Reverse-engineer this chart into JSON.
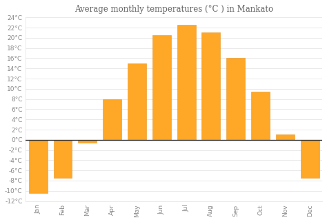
{
  "title": "Average monthly temperatures (°C ) in Mankato",
  "months": [
    "Jan",
    "Feb",
    "Mar",
    "Apr",
    "May",
    "Jun",
    "Jul",
    "Aug",
    "Sep",
    "Oct",
    "Nov",
    "Dec"
  ],
  "values": [
    -10.5,
    -7.5,
    -0.5,
    8,
    15,
    20.5,
    22.5,
    21,
    16,
    9.5,
    1,
    -7.5
  ],
  "bar_color": "#FFA726",
  "bar_edge_color": "#E69520",
  "background_color": "#FFFFFF",
  "plot_bg_color": "#FFFFFF",
  "ylim": [
    -12,
    24
  ],
  "yticks": [
    -12,
    -10,
    -8,
    -6,
    -4,
    -2,
    0,
    2,
    4,
    6,
    8,
    10,
    12,
    14,
    16,
    18,
    20,
    22,
    24
  ],
  "title_fontsize": 8.5,
  "tick_fontsize": 6.5,
  "grid_color": "#E0E0E0",
  "zero_line_color": "#333333",
  "title_color": "#666666",
  "tick_color": "#888888"
}
